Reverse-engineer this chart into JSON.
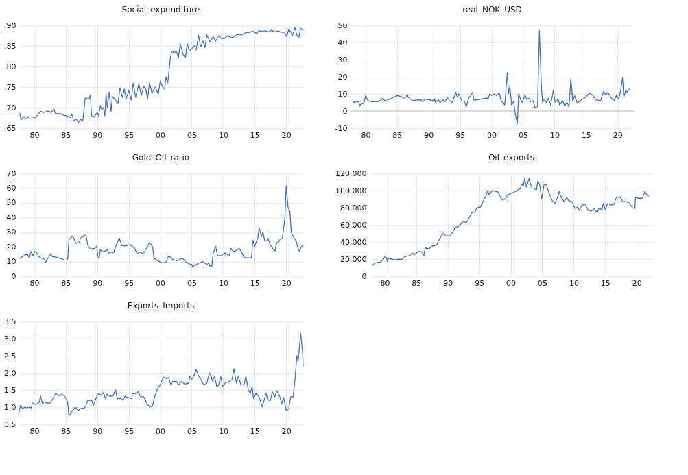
{
  "chart_data": [
    {
      "type": "line",
      "title": "Social_expenditure",
      "color": "#4472c4",
      "grid": true,
      "xlim": [
        1977.5,
        2022.7
      ],
      "xticks": [
        {
          "value": 1980,
          "label": "80"
        },
        {
          "value": 1985,
          "label": "85"
        },
        {
          "value": 1990,
          "label": "90"
        },
        {
          "value": 1995,
          "label": "95"
        },
        {
          "value": 2000,
          "label": "00"
        },
        {
          "value": 2005,
          "label": "05"
        },
        {
          "value": 2010,
          "label": "10"
        },
        {
          "value": 2015,
          "label": "15"
        },
        {
          "value": 2020,
          "label": "20"
        }
      ],
      "ylim": [
        0.65,
        0.9
      ],
      "yticks": [
        {
          "value": 0.65,
          "label": ".65"
        },
        {
          "value": 0.7,
          "label": ".70"
        },
        {
          "value": 0.75,
          "label": ".75"
        },
        {
          "value": 0.8,
          "label": ".80"
        },
        {
          "value": 0.85,
          "label": ".85"
        },
        {
          "value": 0.9,
          "label": ".90"
        }
      ],
      "x": [
        1977.7,
        1977.9,
        1978.3,
        1978.7,
        1979.2,
        1979.7,
        1980.2,
        1980.7,
        1981.0,
        1981.5,
        1982.2,
        1982.7,
        1983.1,
        1983.4,
        1984.2,
        1984.7,
        1985.2,
        1985.7,
        1986.0,
        1986.2,
        1986.7,
        1987.0,
        1987.4,
        1987.7,
        1988.1,
        1988.4,
        1988.7,
        1988.9,
        1989.1,
        1989.5,
        1990.0,
        1990.2,
        1990.5,
        1990.7,
        1991.0,
        1991.2,
        1991.4,
        1991.6,
        1991.9,
        1992.2,
        1992.4,
        1992.8,
        1993.3,
        1993.6,
        1994.0,
        1994.3,
        1994.6,
        1995.0,
        1995.4,
        1995.7,
        1996.1,
        1996.6,
        1997.0,
        1997.4,
        1997.7,
        1998.0,
        1998.3,
        1998.7,
        1999.2,
        1999.7,
        2000.0,
        2000.4,
        2000.7,
        2000.9,
        2001.2,
        2001.6,
        2001.8,
        2002.3,
        2002.6,
        2002.9,
        2003.2,
        2003.6,
        2004.0,
        2004.3,
        2004.6,
        2005.0,
        2005.4,
        2005.7,
        2006.1,
        2006.4,
        2006.8,
        2007.1,
        2007.4,
        2007.9,
        2008.4,
        2008.8,
        2009.3,
        2009.7,
        2010.2,
        2010.7,
        2011.2,
        2011.7,
        2012.2,
        2013.0,
        2013.5,
        2014.2,
        2014.7,
        2015.3,
        2015.7,
        2016.2,
        2016.7,
        2017.2,
        2017.7,
        2018.2,
        2018.7,
        2019.2,
        2019.7,
        2020.1,
        2020.4,
        2020.7,
        2021.0,
        2021.4,
        2021.7,
        2022.0,
        2022.3,
        2022.7
      ],
      "values": [
        0.687,
        0.67,
        0.678,
        0.673,
        0.678,
        0.677,
        0.676,
        0.685,
        0.691,
        0.688,
        0.692,
        0.688,
        0.697,
        0.685,
        0.685,
        0.681,
        0.68,
        0.676,
        0.684,
        0.668,
        0.672,
        0.664,
        0.672,
        0.667,
        0.724,
        0.722,
        0.722,
        0.73,
        0.68,
        0.677,
        0.688,
        0.68,
        0.705,
        0.695,
        0.7,
        0.68,
        0.734,
        0.7,
        0.738,
        0.69,
        0.727,
        0.72,
        0.71,
        0.748,
        0.725,
        0.745,
        0.722,
        0.742,
        0.718,
        0.76,
        0.725,
        0.758,
        0.73,
        0.752,
        0.745,
        0.722,
        0.76,
        0.735,
        0.75,
        0.733,
        0.765,
        0.75,
        0.745,
        0.775,
        0.76,
        0.82,
        0.835,
        0.835,
        0.835,
        0.822,
        0.855,
        0.83,
        0.822,
        0.856,
        0.838,
        0.843,
        0.85,
        0.84,
        0.876,
        0.848,
        0.862,
        0.846,
        0.877,
        0.86,
        0.872,
        0.862,
        0.875,
        0.868,
        0.868,
        0.875,
        0.87,
        0.872,
        0.878,
        0.877,
        0.882,
        0.883,
        0.886,
        0.88,
        0.887,
        0.886,
        0.887,
        0.884,
        0.888,
        0.884,
        0.887,
        0.883,
        0.884,
        0.872,
        0.89,
        0.885,
        0.875,
        0.895,
        0.876,
        0.87,
        0.893,
        0.888
      ]
    },
    {
      "type": "line",
      "title": "real_NOK_USD",
      "color": "#4472c4",
      "grid": true,
      "xlim": [
        1977.5,
        2022.7
      ],
      "xticks": [
        {
          "value": 1980,
          "label": "80"
        },
        {
          "value": 1985,
          "label": "85"
        },
        {
          "value": 1990,
          "label": "90"
        },
        {
          "value": 1995,
          "label": "95"
        },
        {
          "value": 2000,
          "label": "00"
        },
        {
          "value": 2005,
          "label": "05"
        },
        {
          "value": 2010,
          "label": "10"
        },
        {
          "value": 2015,
          "label": "15"
        },
        {
          "value": 2020,
          "label": "20"
        }
      ],
      "ylim": [
        -10,
        50
      ],
      "yticks": [
        -10,
        0,
        10,
        20,
        30,
        40,
        50
      ],
      "ref_lines": [
        {
          "axis": "y",
          "value": 0,
          "color": "#bbbbbb"
        }
      ],
      "x": [
        1978.0,
        1978.6,
        1978.9,
        1979.1,
        1979.3,
        1979.7,
        1980.0,
        1980.4,
        1981.0,
        1982.0,
        1982.5,
        1982.7,
        1983.1,
        1983.9,
        1984.4,
        1985.0,
        1985.6,
        1986.1,
        1986.4,
        1986.6,
        1986.8,
        1987.5,
        1988.2,
        1988.8,
        1989.0,
        1989.5,
        1990.2,
        1990.7,
        1990.9,
        1991.1,
        1991.6,
        1991.8,
        1992.3,
        1992.6,
        1993.0,
        1993.3,
        1993.8,
        1994.3,
        1994.6,
        1994.8,
        1995.3,
        1995.7,
        1996.0,
        1996.4,
        1996.7,
        1997.0,
        1997.2,
        1997.7,
        1998.4,
        1999.1,
        1999.5,
        1999.7,
        2000.0,
        2000.4,
        2000.8,
        2001.2,
        2001.3,
        2001.5,
        2001.8,
        2002.1,
        2002.5,
        2002.7,
        2002.9,
        2003.2,
        2003.5,
        2003.8,
        2004.1,
        2004.3,
        2004.7,
        2004.9,
        2005.3,
        2005.6,
        2006.0,
        2006.2,
        2006.6,
        2006.9,
        2007.3,
        2007.6,
        2007.9,
        2008.1,
        2008.4,
        2008.7,
        2009.0,
        2009.4,
        2009.8,
        2010.1,
        2010.6,
        2010.8,
        2011.3,
        2011.6,
        2012.0,
        2012.3,
        2012.6,
        2012.9,
        2013.2,
        2013.6,
        2014.2,
        2014.9,
        2015.6,
        2016.1,
        2016.6,
        2017.3,
        2017.8,
        2018.1,
        2018.5,
        2018.9,
        2019.5,
        2019.8,
        2020.2,
        2020.5,
        2020.8,
        2021.0,
        2021.3,
        2021.5,
        2021.9
      ],
      "values": [
        5,
        5.5,
        5.5,
        3,
        4.5,
        4,
        9,
        6,
        5.5,
        5.5,
        6.5,
        7.5,
        6,
        7,
        8,
        9,
        8.5,
        7.5,
        8,
        10,
        8,
        6,
        6.5,
        6.5,
        5.5,
        7,
        6.5,
        6,
        7.5,
        5,
        6.5,
        5,
        6.5,
        5.5,
        8,
        6,
        5,
        11,
        8,
        10,
        6,
        5.5,
        2.5,
        8,
        9,
        11,
        6.5,
        6.5,
        7,
        7.5,
        7.5,
        10,
        9,
        10,
        9,
        10.5,
        9.5,
        6,
        5,
        3.5,
        22.5,
        10,
        14.5,
        3.5,
        5.5,
        -2,
        -7.5,
        10,
        6,
        5,
        9.5,
        7,
        7.5,
        5.5,
        6,
        2,
        2.5,
        47,
        15,
        5,
        7,
        5,
        7.5,
        3.5,
        12,
        5,
        7,
        3.5,
        6,
        3,
        5,
        2.5,
        19,
        6,
        9,
        4.5,
        6.5,
        8,
        10.5,
        9,
        6.5,
        6,
        11.5,
        9.5,
        11,
        8,
        6,
        9,
        7,
        12,
        19.5,
        8,
        12,
        11,
        13
      ]
    },
    {
      "type": "line",
      "title": "Gold_Oil_ratio",
      "color": "#4472c4",
      "grid": true,
      "xlim": [
        1977.5,
        2022.7
      ],
      "xticks": [
        {
          "value": 1980,
          "label": "80"
        },
        {
          "value": 1985,
          "label": "85"
        },
        {
          "value": 1990,
          "label": "90"
        },
        {
          "value": 1995,
          "label": "95"
        },
        {
          "value": 2000,
          "label": "00"
        },
        {
          "value": 2005,
          "label": "05"
        },
        {
          "value": 2010,
          "label": "10"
        },
        {
          "value": 2015,
          "label": "15"
        },
        {
          "value": 2020,
          "label": "20"
        }
      ],
      "ylim": [
        0,
        70
      ],
      "yticks": [
        0,
        10,
        20,
        30,
        40,
        50,
        60,
        70
      ],
      "x": [
        1977.5,
        1978.0,
        1978.5,
        1978.9,
        1979.2,
        1979.5,
        1979.8,
        1980.1,
        1980.3,
        1980.8,
        1981.3,
        1981.6,
        1981.8,
        1982.0,
        1982.6,
        1982.9,
        1983.4,
        1984.4,
        1984.7,
        1985.3,
        1985.5,
        1985.8,
        1986.1,
        1986.6,
        1987.2,
        1987.3,
        1987.8,
        1988.2,
        1988.5,
        1988.9,
        1989.6,
        1989.9,
        1990.1,
        1990.3,
        1990.5,
        1991.0,
        1991.6,
        1991.8,
        1992.3,
        1992.6,
        1993.0,
        1993.5,
        1993.9,
        1994.5,
        1995.1,
        1995.7,
        1996.0,
        1996.3,
        1996.9,
        1997.2,
        1997.4,
        1998.0,
        1998.3,
        1998.8,
        1999.0,
        1999.3,
        2000.0,
        2000.5,
        2001.0,
        2001.3,
        2001.7,
        2002.0,
        2002.6,
        2002.9,
        2003.3,
        2003.6,
        2004.1,
        2004.6,
        2005.0,
        2005.2,
        2005.7,
        2006.2,
        2006.7,
        2007.1,
        2007.4,
        2007.7,
        2007.9,
        2008.2,
        2008.4,
        2008.8,
        2009.1,
        2009.7,
        2010.0,
        2010.3,
        2010.7,
        2011.0,
        2011.2,
        2011.6,
        2011.9,
        2012.2,
        2012.5,
        2012.8,
        2013.3,
        2013.8,
        2014.3,
        2014.5,
        2014.7,
        2015.0,
        2015.3,
        2015.5,
        2015.7,
        2016.1,
        2016.3,
        2016.6,
        2016.9,
        2017.1,
        2017.4,
        2018.0,
        2018.2,
        2018.5,
        2018.7,
        2019.0,
        2019.4,
        2019.8,
        2020.0,
        2020.3,
        2020.6,
        2020.8,
        2021.1,
        2021.6,
        2021.8,
        2022.1,
        2022.4,
        2022.7
      ],
      "values": [
        12,
        13,
        14.5,
        15,
        12.5,
        17,
        14,
        17,
        16.5,
        13,
        12,
        11.5,
        9.5,
        11,
        15,
        13.5,
        13,
        12,
        11,
        11,
        25,
        26,
        27.5,
        22.5,
        23,
        26,
        27,
        28.5,
        21,
        18.5,
        19,
        20.5,
        13.5,
        12.5,
        18,
        16.5,
        18,
        15.5,
        16.5,
        16,
        21,
        26,
        21,
        20.5,
        21.5,
        20,
        18.5,
        15.5,
        16.5,
        15.5,
        16,
        20.5,
        23,
        20,
        12,
        11.5,
        9.5,
        9,
        10,
        13.5,
        13,
        11.5,
        10.5,
        11,
        12,
        12,
        9.5,
        8.5,
        8,
        6.5,
        8,
        9,
        10,
        9,
        8,
        9,
        7,
        7,
        15.5,
        20.5,
        14,
        14,
        15,
        16,
        14.5,
        14,
        19,
        17,
        17,
        18,
        19,
        17.5,
        13,
        12.5,
        12.5,
        13,
        24.5,
        20,
        24,
        26,
        33,
        27,
        30,
        24,
        24,
        26,
        22,
        18,
        17,
        23,
        22.5,
        25,
        26,
        40,
        61.5,
        47,
        44,
        30,
        27,
        24,
        20,
        17,
        20,
        21
      ]
    },
    {
      "type": "line",
      "title": "Oil_exports",
      "color": "#4472c4",
      "grid": true,
      "xlim": [
        1977.5,
        2022.7
      ],
      "xticks": [
        {
          "value": 1980,
          "label": "80"
        },
        {
          "value": 1985,
          "label": "85"
        },
        {
          "value": 1990,
          "label": "90"
        },
        {
          "value": 1995,
          "label": "95"
        },
        {
          "value": 2000,
          "label": "00"
        },
        {
          "value": 2005,
          "label": "05"
        },
        {
          "value": 2010,
          "label": "10"
        },
        {
          "value": 2015,
          "label": "15"
        },
        {
          "value": 2020,
          "label": "20"
        }
      ],
      "ylim": [
        0,
        120000
      ],
      "yticks": [
        0,
        {
          "value": 20000,
          "label": "20,000"
        },
        {
          "value": 40000,
          "label": "40,000"
        },
        {
          "value": 60000,
          "label": "60,000"
        },
        {
          "value": 80000,
          "label": "80,000"
        },
        {
          "value": 100000,
          "label": "100,000"
        },
        {
          "value": 120000,
          "label": "120,000"
        }
      ],
      "x": [
        1978.0,
        1978.4,
        1978.7,
        1979.3,
        1979.8,
        1980.0,
        1980.3,
        1980.4,
        1980.6,
        1981.1,
        1981.6,
        1982.2,
        1982.7,
        1983.2,
        1983.9,
        1984.4,
        1984.7,
        1985.4,
        1985.9,
        1986.2,
        1986.4,
        1987.0,
        1987.5,
        1988.0,
        1988.3,
        1988.8,
        1989.3,
        1989.7,
        1990.4,
        1990.9,
        1991.2,
        1991.7,
        1992.3,
        1992.6,
        1992.9,
        1993.3,
        1993.8,
        1994.3,
        1994.7,
        1995.2,
        1995.7,
        1996.0,
        1996.4,
        1996.5,
        1997.1,
        1997.6,
        1997.9,
        1998.3,
        1998.7,
        1999.1,
        1999.5,
        2000.1,
        2000.8,
        2001.2,
        2001.5,
        2001.8,
        2002.0,
        2002.2,
        2002.5,
        2002.9,
        2003.3,
        2003.7,
        2004.1,
        2004.3,
        2004.6,
        2004.9,
        2005.3,
        2005.6,
        2006.1,
        2006.6,
        2007.0,
        2007.5,
        2007.7,
        2008.0,
        2008.5,
        2008.9,
        2009.2,
        2009.7,
        2010.2,
        2010.6,
        2010.9,
        2011.3,
        2011.8,
        2012.3,
        2012.8,
        2013.3,
        2013.7,
        2014.0,
        2014.5,
        2014.7,
        2015.0,
        2015.4,
        2015.9,
        2016.4,
        2016.7,
        2017.3,
        2017.8,
        2018.3,
        2018.8,
        2019.3,
        2019.7,
        2019.8,
        2020.3,
        2020.9,
        2021.3,
        2021.7,
        2022.0
      ],
      "values": [
        12500,
        15000,
        16000,
        16500,
        20000,
        23000,
        21500,
        17000,
        21000,
        20000,
        19000,
        20000,
        19500,
        23000,
        24000,
        27000,
        25000,
        29000,
        28500,
        24000,
        33000,
        32000,
        35000,
        36000,
        37500,
        45000,
        50000,
        47000,
        47000,
        53000,
        57000,
        58000,
        63000,
        64000,
        62000,
        67000,
        74000,
        75000,
        80000,
        81000,
        89000,
        93000,
        101000,
        95000,
        100000,
        99000,
        99000,
        93000,
        89000,
        90000,
        95000,
        97000,
        99000,
        101000,
        102000,
        108000,
        105000,
        114000,
        104000,
        114000,
        104000,
        102000,
        101000,
        111000,
        107000,
        90000,
        107000,
        107000,
        97000,
        88000,
        85000,
        93000,
        99000,
        92000,
        87000,
        92000,
        88000,
        87000,
        79000,
        81000,
        77000,
        83000,
        84000,
        77000,
        76000,
        79000,
        74000,
        79000,
        78000,
        85000,
        78000,
        85000,
        83000,
        84000,
        91000,
        93000,
        87000,
        87000,
        86000,
        80000,
        79000,
        92000,
        91000,
        91000,
        99000,
        94000,
        93000
      ]
    },
    {
      "type": "line",
      "title": "Exports_Imports",
      "color": "#4472c4",
      "grid": true,
      "xlim": [
        1977.5,
        2022.7
      ],
      "xticks": [
        {
          "value": 1980,
          "label": "80"
        },
        {
          "value": 1985,
          "label": "85"
        },
        {
          "value": 1990,
          "label": "90"
        },
        {
          "value": 1995,
          "label": "95"
        },
        {
          "value": 2000,
          "label": "00"
        },
        {
          "value": 2005,
          "label": "05"
        },
        {
          "value": 2010,
          "label": "10"
        },
        {
          "value": 2015,
          "label": "15"
        },
        {
          "value": 2020,
          "label": "20"
        }
      ],
      "ylim": [
        0.5,
        3.5
      ],
      "yticks": [
        0.5,
        {
          "value": 1,
          "label": "1.0"
        },
        1.5,
        {
          "value": 2,
          "label": "2.0"
        },
        2.5,
        {
          "value": 3,
          "label": "3.0"
        },
        3.5
      ],
      "x": [
        1977.5,
        1977.8,
        1978.2,
        1978.5,
        1978.9,
        1979.2,
        1979.5,
        1979.7,
        1980.2,
        1980.6,
        1980.8,
        1981.0,
        1981.3,
        1981.6,
        1982.0,
        1982.5,
        1982.8,
        1983.4,
        1983.9,
        1984.4,
        1984.9,
        1985.3,
        1985.5,
        1986.0,
        1986.5,
        1987.0,
        1987.5,
        1987.9,
        1988.2,
        1988.5,
        1989.1,
        1989.4,
        1989.7,
        1989.9,
        1990.2,
        1990.6,
        1991.0,
        1991.3,
        1991.6,
        1992.0,
        1992.5,
        1992.9,
        1993.2,
        1993.7,
        1994.1,
        1994.4,
        1994.9,
        1995.5,
        1995.6,
        1996.2,
        1996.5,
        1996.9,
        1997.4,
        1997.9,
        1998.4,
        1998.8,
        1999.1,
        1999.6,
        2000.0,
        2000.5,
        2001.0,
        2001.3,
        2001.7,
        2002.0,
        2002.6,
        2002.9,
        2003.4,
        2003.9,
        2004.5,
        2004.7,
        2005.0,
        2005.3,
        2005.7,
        2006.0,
        2006.5,
        2006.9,
        2007.4,
        2007.8,
        2008.1,
        2008.3,
        2008.6,
        2009.0,
        2009.3,
        2009.6,
        2009.9,
        2010.3,
        2010.9,
        2011.4,
        2011.7,
        2012.1,
        2012.4,
        2012.8,
        2013.3,
        2013.6,
        2014.0,
        2014.3,
        2014.6,
        2014.8,
        2015.2,
        2015.7,
        2016.2,
        2016.8,
        2017.1,
        2017.5,
        2017.8,
        2018.2,
        2018.5,
        2019.0,
        2019.3,
        2019.6,
        2020.0,
        2020.4,
        2020.7,
        2021.1,
        2021.4,
        2021.7,
        2021.9,
        2022.3,
        2022.6,
        2022.7
      ],
      "values": [
        0.8,
        1.05,
        0.95,
        1.0,
        0.98,
        1.0,
        0.97,
        1.12,
        1.08,
        1.1,
        1.15,
        1.33,
        1.1,
        1.15,
        1.12,
        1.12,
        1.2,
        1.4,
        1.33,
        1.38,
        1.3,
        1.15,
        0.75,
        0.88,
        1.0,
        0.9,
        0.97,
        0.95,
        1.05,
        1.2,
        1.2,
        1.05,
        1.2,
        1.3,
        1.4,
        1.35,
        1.42,
        1.25,
        1.38,
        1.32,
        1.33,
        1.5,
        1.25,
        1.25,
        1.2,
        1.32,
        1.28,
        1.25,
        1.4,
        1.4,
        1.45,
        1.3,
        1.3,
        1.1,
        1.0,
        1.05,
        1.3,
        1.55,
        1.65,
        1.88,
        1.83,
        1.87,
        1.65,
        1.75,
        1.75,
        1.65,
        1.75,
        1.67,
        1.7,
        1.9,
        1.8,
        1.9,
        2.1,
        1.95,
        1.8,
        1.65,
        1.7,
        2.0,
        1.9,
        1.75,
        1.9,
        1.6,
        1.65,
        1.9,
        1.6,
        1.7,
        1.75,
        1.8,
        2.12,
        1.7,
        1.9,
        1.65,
        1.65,
        1.9,
        1.5,
        1.4,
        1.6,
        1.25,
        1.4,
        1.3,
        1.0,
        1.4,
        1.2,
        1.2,
        1.45,
        1.3,
        1.48,
        1.3,
        1.1,
        1.28,
        0.9,
        0.95,
        1.3,
        1.3,
        1.8,
        2.5,
        2.35,
        3.15,
        2.6,
        2.2
      ]
    }
  ]
}
